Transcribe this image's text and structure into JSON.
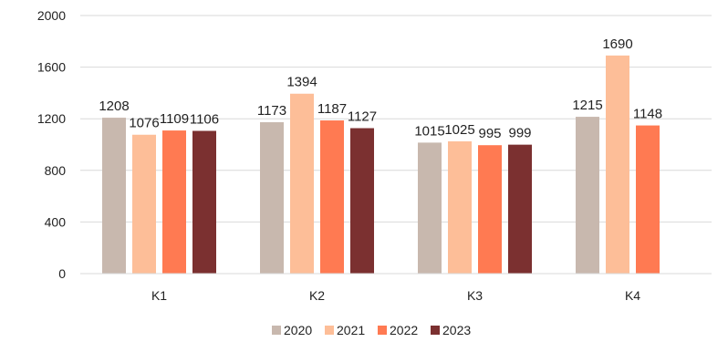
{
  "chart_data": {
    "type": "bar",
    "categories": [
      "K1",
      "K2",
      "K3",
      "K4"
    ],
    "series": [
      {
        "name": "2020",
        "color": "#C8B8AE",
        "values": [
          1208,
          1173,
          1015,
          1215
        ]
      },
      {
        "name": "2021",
        "color": "#FDBE98",
        "values": [
          1076,
          1394,
          1025,
          1690
        ]
      },
      {
        "name": "2022",
        "color": "#FF7A52",
        "values": [
          1109,
          1187,
          995,
          1148
        ]
      },
      {
        "name": "2023",
        "color": "#7B3030",
        "values": [
          1106,
          1127,
          999,
          null
        ]
      }
    ],
    "yticks": [
      "0",
      "400",
      "800",
      "1200",
      "1600",
      "2000"
    ],
    "ylim": [
      0,
      2000
    ],
    "grid": true,
    "legend_position": "bottom",
    "title": "",
    "xlabel": "",
    "ylabel": ""
  }
}
